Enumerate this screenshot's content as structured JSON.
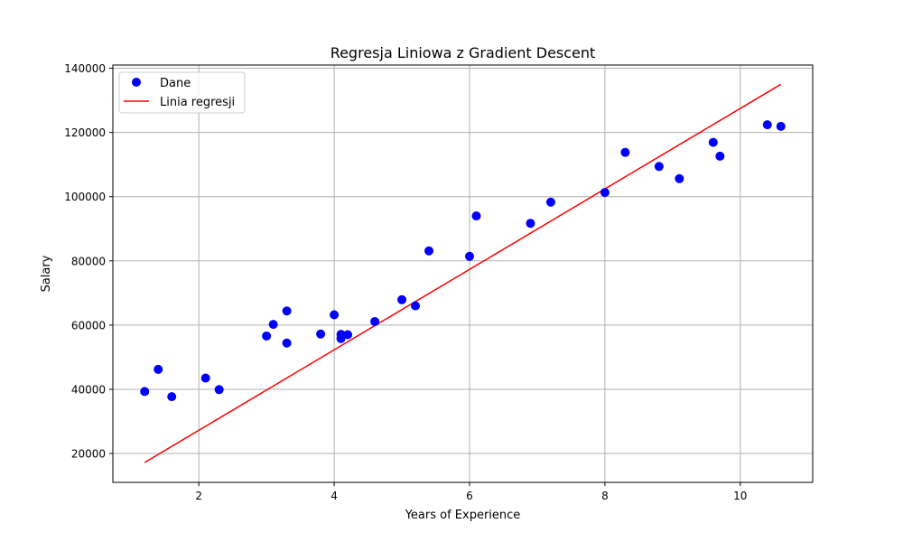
{
  "chart_data": {
    "type": "scatter",
    "title": "Regresja Liniowa z Gradient Descent",
    "xlabel": "Years of Experience",
    "ylabel": "Salary",
    "xlim": [
      0.73,
      11.07
    ],
    "ylim": [
      11000,
      141000
    ],
    "x_ticks": [
      2,
      4,
      6,
      8,
      10
    ],
    "y_ticks": [
      20000,
      40000,
      60000,
      80000,
      100000,
      120000,
      140000
    ],
    "grid": true,
    "legend_position": "top-left",
    "series": [
      {
        "name": "Dane",
        "kind": "scatter",
        "color": "#0000ff",
        "points": [
          [
            1.2,
            39300
          ],
          [
            1.4,
            46200
          ],
          [
            1.6,
            37700
          ],
          [
            2.1,
            43500
          ],
          [
            2.3,
            39900
          ],
          [
            3.0,
            56600
          ],
          [
            3.1,
            60200
          ],
          [
            3.3,
            54400
          ],
          [
            3.3,
            64400
          ],
          [
            3.8,
            57200
          ],
          [
            4.0,
            63200
          ],
          [
            4.1,
            55800
          ],
          [
            4.1,
            57100
          ],
          [
            4.2,
            57000
          ],
          [
            4.6,
            61100
          ],
          [
            5.0,
            67900
          ],
          [
            5.2,
            66000
          ],
          [
            5.4,
            83100
          ],
          [
            6.0,
            81400
          ],
          [
            6.1,
            94000
          ],
          [
            6.9,
            91700
          ],
          [
            7.2,
            98300
          ],
          [
            8.0,
            101300
          ],
          [
            8.3,
            113800
          ],
          [
            8.8,
            109400
          ],
          [
            9.1,
            105600
          ],
          [
            9.6,
            116900
          ],
          [
            9.7,
            112600
          ],
          [
            10.4,
            122400
          ],
          [
            10.6,
            121900
          ]
        ]
      },
      {
        "name": "Linia regresji",
        "kind": "line",
        "color": "#ff0000",
        "points": [
          [
            1.2,
            17200
          ],
          [
            10.6,
            135000
          ]
        ]
      }
    ]
  }
}
